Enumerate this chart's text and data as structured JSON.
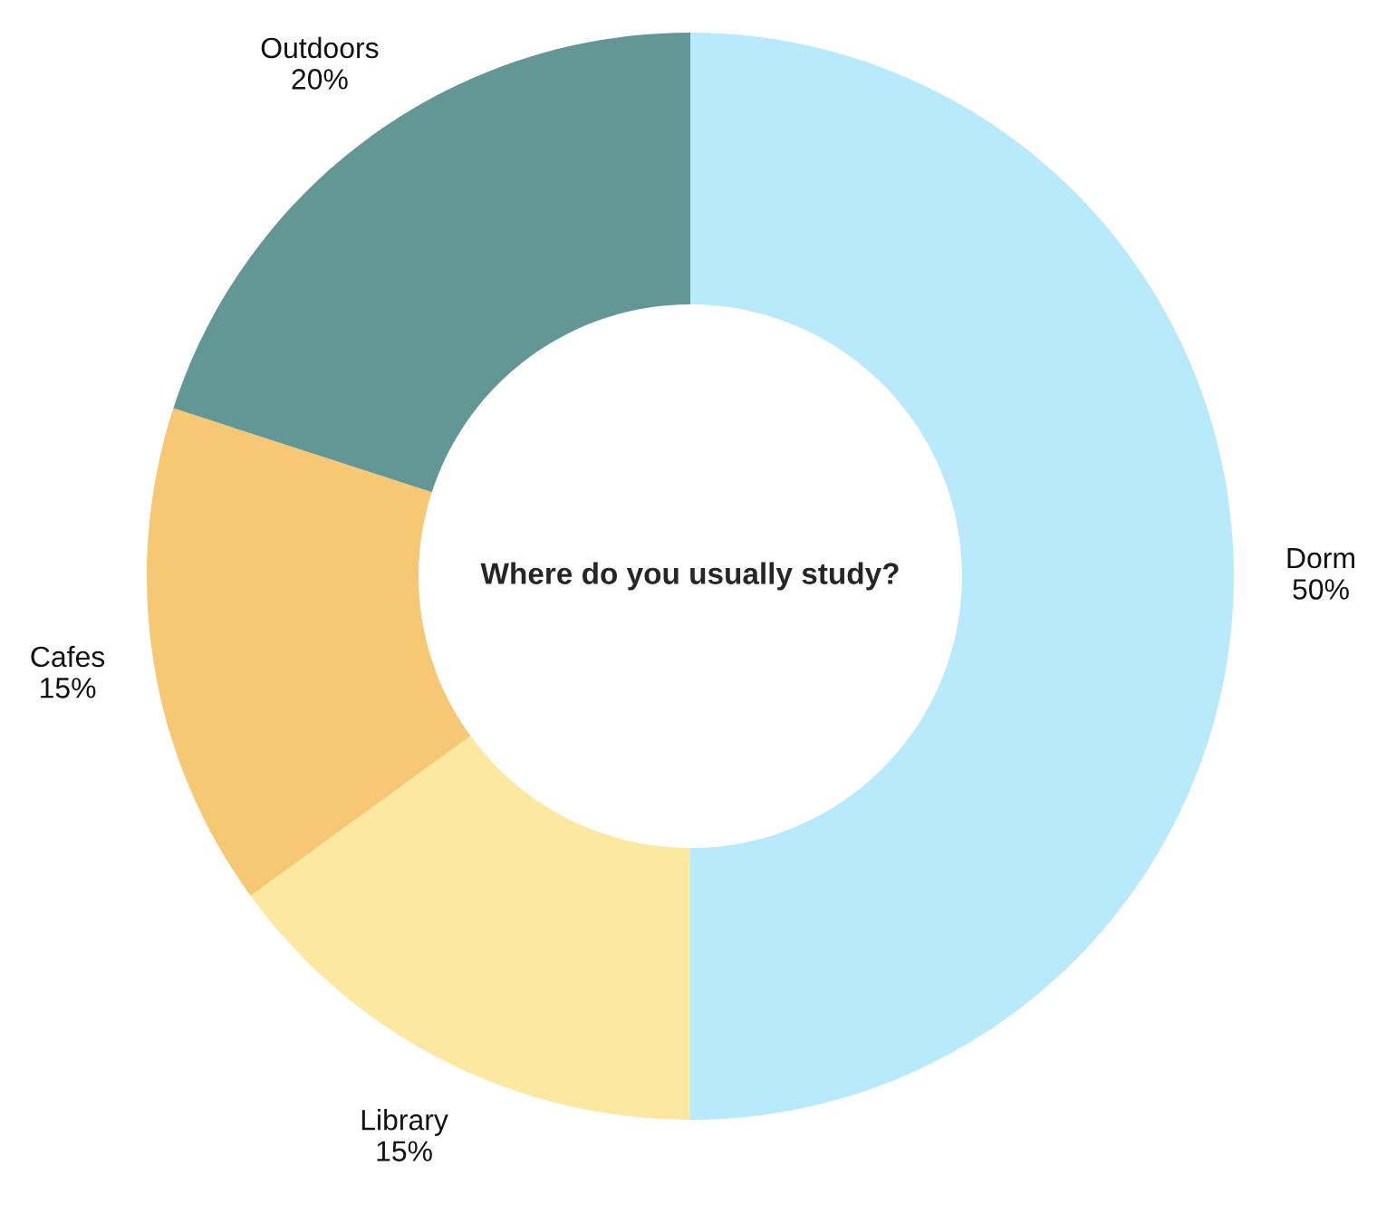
{
  "chart_data": {
    "type": "donut",
    "title": "Where do you usually study?",
    "categories": [
      "Dorm",
      "Library",
      "Cafes",
      "Outdoors"
    ],
    "values": [
      50,
      15,
      15,
      20
    ],
    "colors": [
      "#b9eafb",
      "#fce8a0",
      "#f7c873",
      "#639796"
    ],
    "value_labels": [
      "50%",
      "15%",
      "15%",
      "20%"
    ],
    "legend": false
  }
}
